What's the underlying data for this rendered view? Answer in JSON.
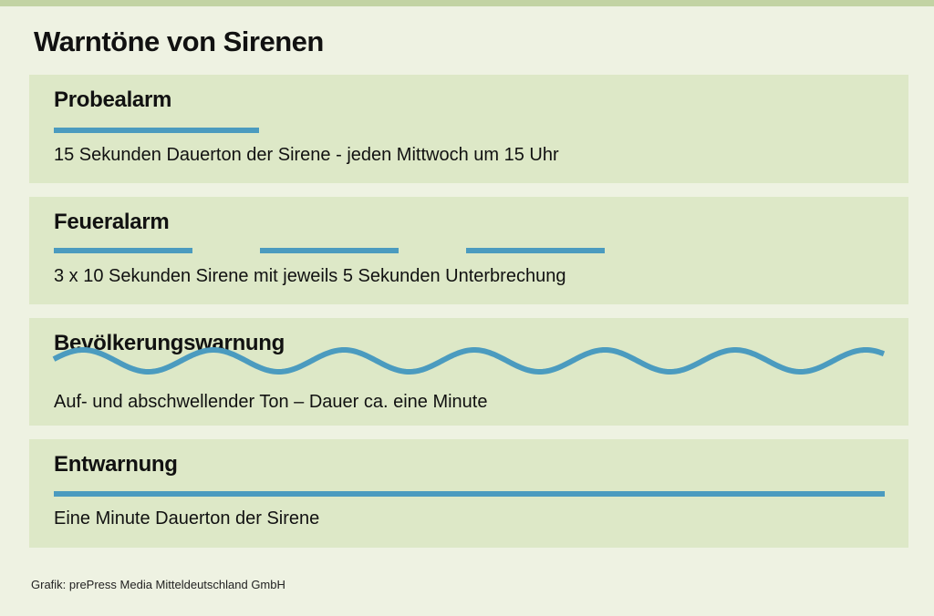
{
  "title": "Warntöne von Sirenen",
  "colors": {
    "background": "#eef2e2",
    "panel": "#dde8c7",
    "tone": "#4b9bbf",
    "top_bar": "#c2d3a3"
  },
  "signals": [
    {
      "name": "Probealarm",
      "description": "15 Sekunden Dauerton der Sirene - jeden Mittwoch um 15 Uhr",
      "pattern": "steady-short"
    },
    {
      "name": "Feueralarm",
      "description": "3 x 10 Sekunden Sirene mit jeweils 5 Sekunden Unterbrechung",
      "pattern": "three-bursts"
    },
    {
      "name": "Bevölkerungswarnung",
      "description": "Auf- und abschwellender Ton – Dauer ca. eine Minute",
      "pattern": "wave"
    },
    {
      "name": "Entwarnung",
      "description": "Eine Minute Dauerton der Sirene",
      "pattern": "steady-long"
    }
  ],
  "credit": "Grafik: prePress Media Mitteldeutschland GmbH"
}
